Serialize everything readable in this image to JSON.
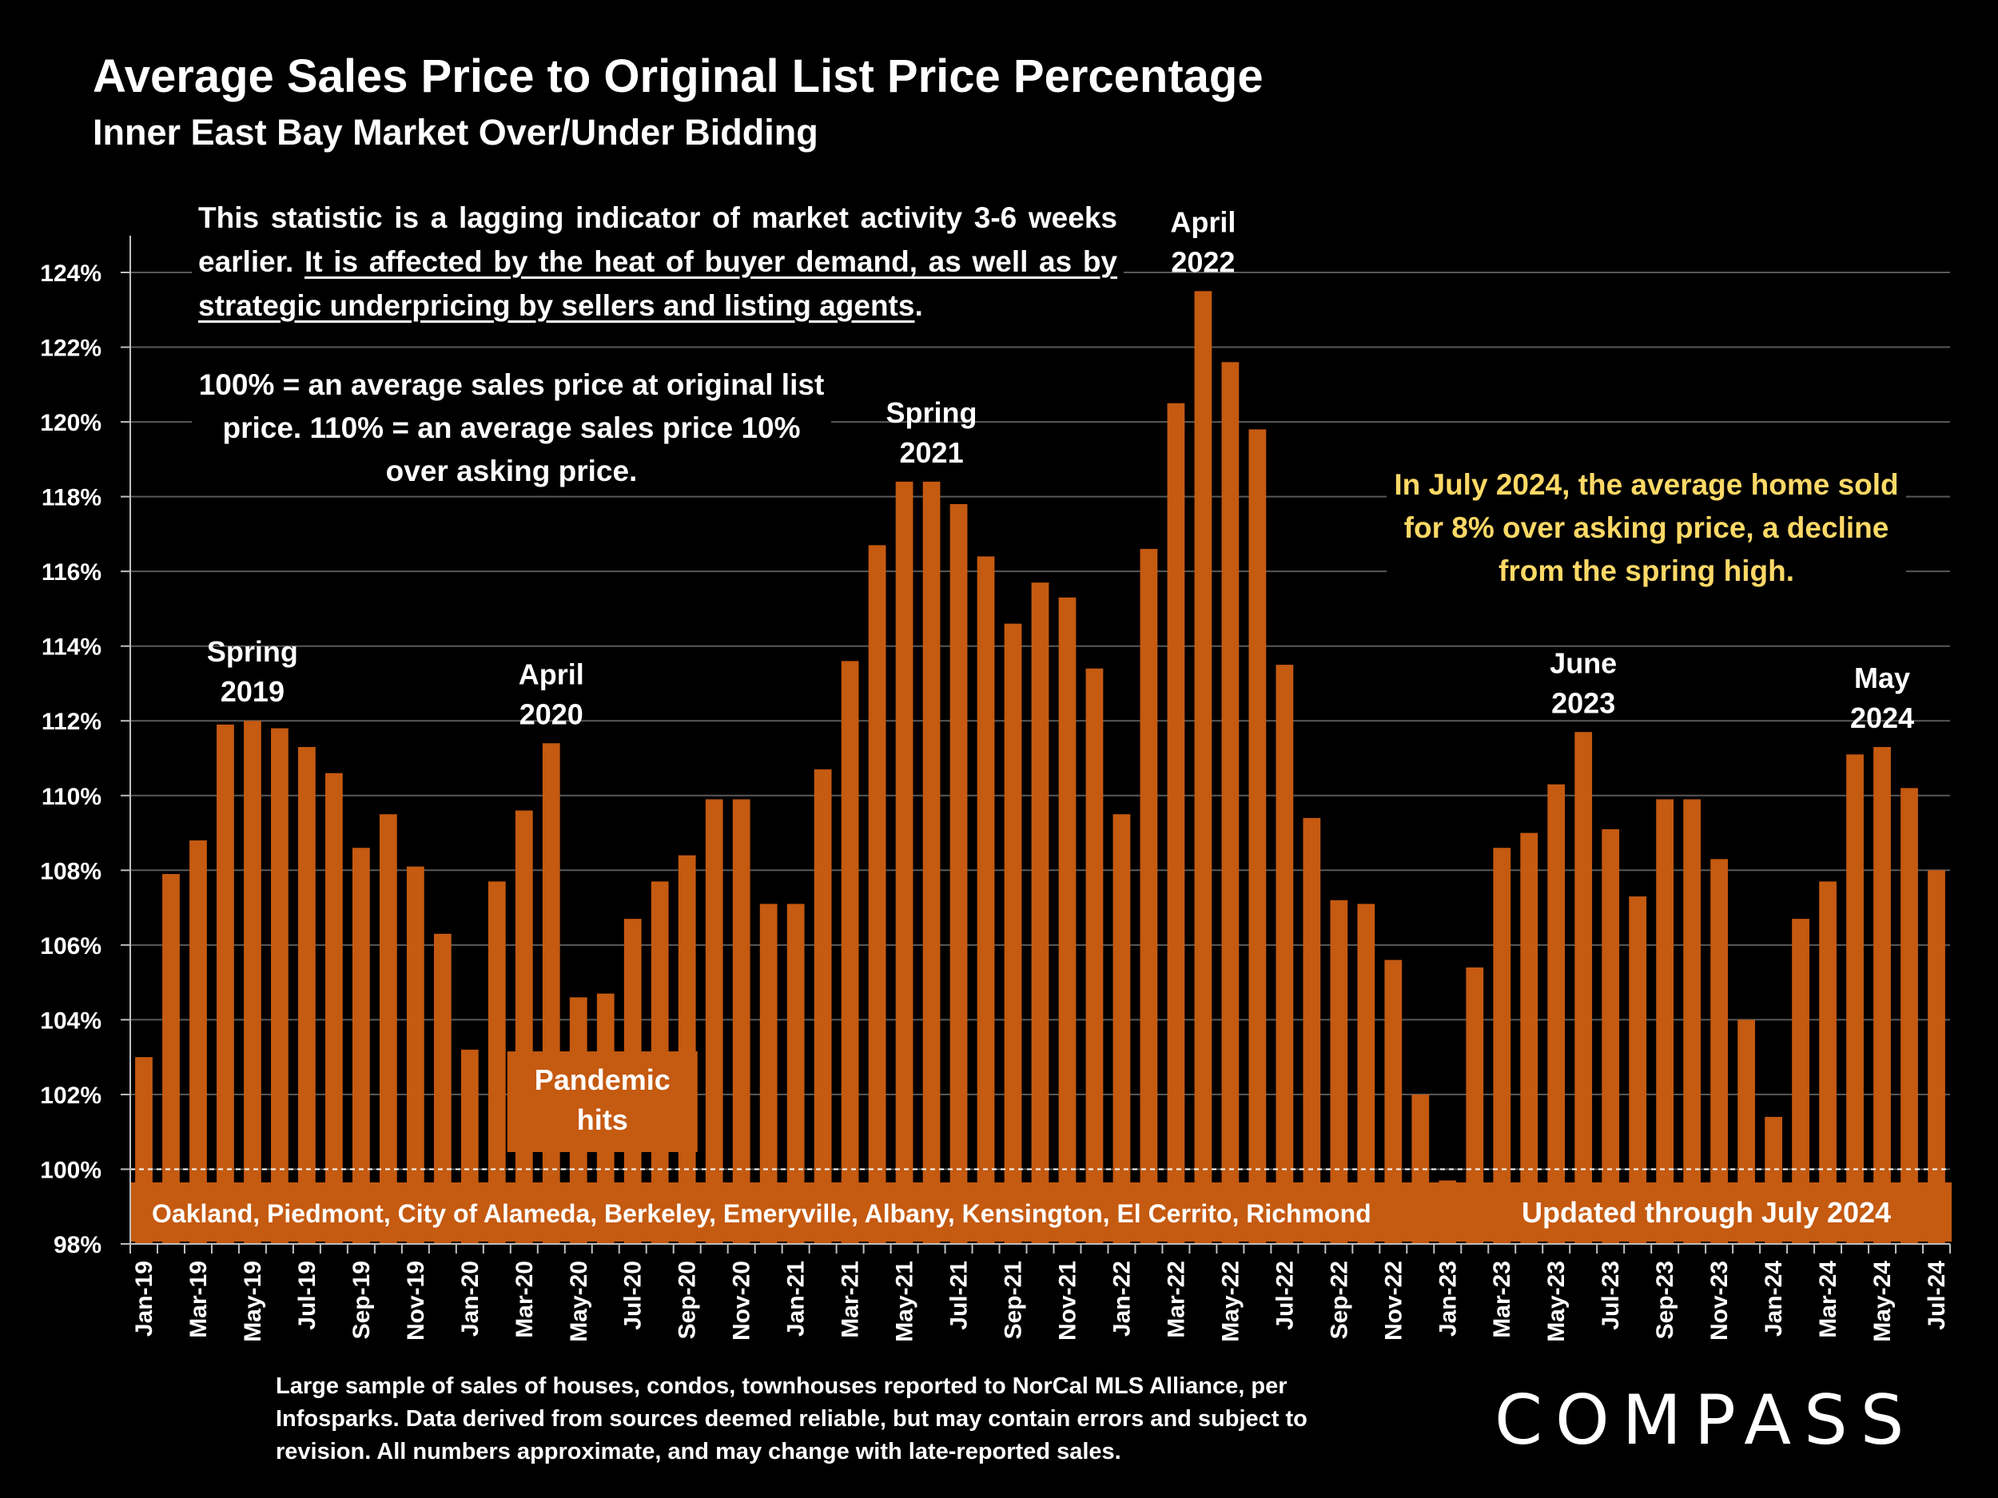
{
  "title": "Average Sales Price to Original List Price Percentage",
  "subtitle": "Inner East Bay Market Over/Under Bidding",
  "intro_plain": "This statistic is a lagging indicator of market activity 3-6 weeks earlier. ",
  "intro_underlined": "It is affected by the heat of buyer demand, as well as by strategic underpricing by sellers and listing agents",
  "intro_end": ".",
  "explanation": "100% = an average sales price at original list price. 110% = an average sales price 10% over asking price.",
  "note": "In July 2024, the average home sold for 8% over asking price, a decline from the spring high.",
  "footnote": "Large sample of sales of houses, condos, townhouses reported to NorCal MLS Alliance, per Infosparks. Data derived from sources deemed reliable, but may contain errors and subject to revision. All numbers approximate, and may change with late-reported sales.",
  "logo": "COMPASS",
  "colors": {
    "bar": "#C55A11",
    "note": "#FFD966",
    "background": "#000000",
    "grid": "#595959"
  },
  "chart_data": {
    "type": "bar",
    "title": "Average Sales Price to Original List Price Percentage",
    "subtitle": "Inner East Bay Market Over/Under Bidding",
    "xlabel": "",
    "ylabel": "",
    "ylim": [
      98,
      124
    ],
    "y_ticks": [
      "98%",
      "100%",
      "102%",
      "104%",
      "106%",
      "108%",
      "110%",
      "112%",
      "114%",
      "116%",
      "118%",
      "120%",
      "122%",
      "124%"
    ],
    "grid": "horizontal",
    "reference_line": 100,
    "categories": [
      "Jan-19",
      "Feb-19",
      "Mar-19",
      "Apr-19",
      "May-19",
      "Jun-19",
      "Jul-19",
      "Aug-19",
      "Sep-19",
      "Oct-19",
      "Nov-19",
      "Dec-19",
      "Jan-20",
      "Feb-20",
      "Mar-20",
      "Apr-20",
      "May-20",
      "Jun-20",
      "Jul-20",
      "Aug-20",
      "Sep-20",
      "Oct-20",
      "Nov-20",
      "Dec-20",
      "Jan-21",
      "Feb-21",
      "Mar-21",
      "Apr-21",
      "May-21",
      "Jun-21",
      "Jul-21",
      "Aug-21",
      "Sep-21",
      "Oct-21",
      "Nov-21",
      "Dec-21",
      "Jan-22",
      "Feb-22",
      "Mar-22",
      "Apr-22",
      "May-22",
      "Jun-22",
      "Jul-22",
      "Aug-22",
      "Sep-22",
      "Oct-22",
      "Nov-22",
      "Dec-22",
      "Jan-23",
      "Feb-23",
      "Mar-23",
      "Apr-23",
      "May-23",
      "Jun-23",
      "Jul-23",
      "Aug-23",
      "Sep-23",
      "Oct-23",
      "Nov-23",
      "Dec-23",
      "Jan-24",
      "Feb-24",
      "Mar-24",
      "Apr-24",
      "May-24",
      "Jun-24",
      "Jul-24"
    ],
    "tick_labels": [
      "Jan-19",
      "Mar-19",
      "May-19",
      "Jul-19",
      "Sep-19",
      "Nov-19",
      "Jan-20",
      "Mar-20",
      "May-20",
      "Jul-20",
      "Sep-20",
      "Nov-20",
      "Jan-21",
      "Mar-21",
      "May-21",
      "Jul-21",
      "Sep-21",
      "Nov-21",
      "Jan-22",
      "Mar-22",
      "May-22",
      "Jul-22",
      "Sep-22",
      "Nov-22",
      "Jan-23",
      "Mar-23",
      "May-23",
      "Jul-23",
      "Sep-23",
      "Nov-23",
      "Jan-24",
      "Mar-24",
      "May-24",
      "Jul-24"
    ],
    "values": [
      103.0,
      107.9,
      108.8,
      111.9,
      112.0,
      111.8,
      111.3,
      110.6,
      108.6,
      109.5,
      108.1,
      106.3,
      103.2,
      107.7,
      109.6,
      111.4,
      104.6,
      104.7,
      106.7,
      107.7,
      108.4,
      109.9,
      109.9,
      107.1,
      107.1,
      110.7,
      113.6,
      116.7,
      118.4,
      118.4,
      117.8,
      116.4,
      114.6,
      115.7,
      115.3,
      113.4,
      109.5,
      116.6,
      120.5,
      123.5,
      121.6,
      119.8,
      113.5,
      109.4,
      107.2,
      107.1,
      105.6,
      102.0,
      99.7,
      105.4,
      108.6,
      109.0,
      110.3,
      111.7,
      109.1,
      107.3,
      109.9,
      109.9,
      108.3,
      104.0,
      101.4,
      106.7,
      107.7,
      111.1,
      111.3,
      110.2,
      108.0
    ],
    "annotations": [
      {
        "text": [
          "Spring",
          "2019"
        ],
        "at": "May-19"
      },
      {
        "text": [
          "April",
          "2020"
        ],
        "at": "Apr-20"
      },
      {
        "text": [
          "Spring",
          "2021"
        ],
        "at": "Jun-21"
      },
      {
        "text": [
          "April",
          "2022"
        ],
        "at": "Apr-22"
      },
      {
        "text": [
          "June",
          "2023"
        ],
        "at": "Jun-23"
      },
      {
        "text": [
          "May",
          "2024"
        ],
        "at": "May-24"
      }
    ],
    "pandemic_label": [
      "Pandemic",
      "hits"
    ],
    "band_label": "Oakland, Piedmont, City of Alameda, Berkeley, Emeryville, Albany, Kensington, El Cerrito, Richmond",
    "band_label_right": "Updated through July 2024"
  }
}
